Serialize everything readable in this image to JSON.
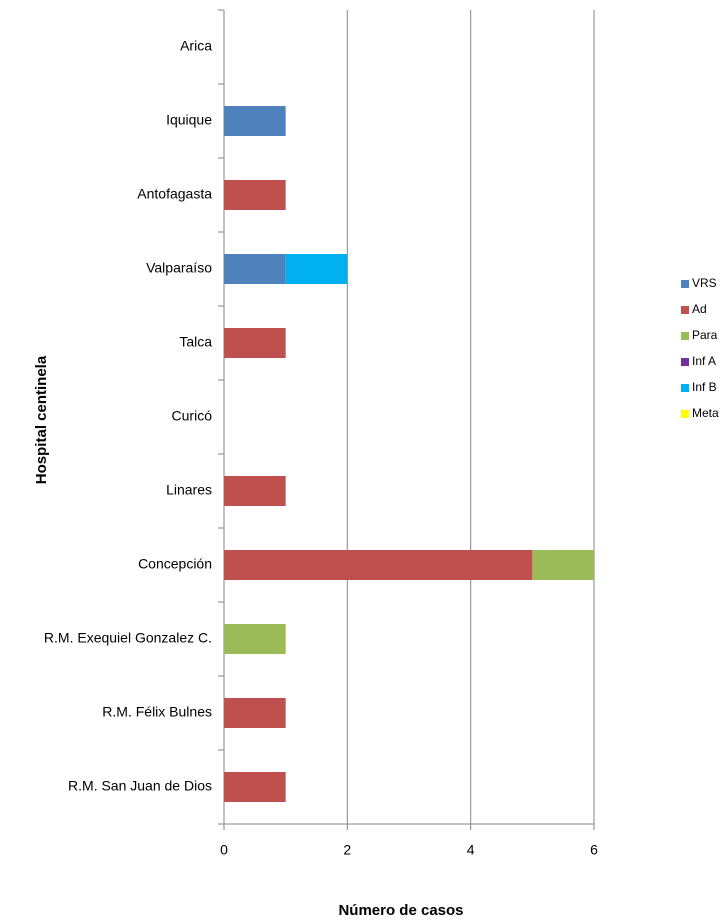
{
  "chart_data": {
    "type": "stacked-barh",
    "xlabel": "Número de casos",
    "ylabel": "Hospital  centinela",
    "categories": [
      "Arica",
      "Iquique",
      "Antofagasta",
      "Valparaíso",
      "Talca",
      "Curicó",
      "Linares",
      "Concepción",
      "R.M. Exequiel Gonzalez C.",
      "R.M. Félix Bulnes",
      "R.M. San Juan de Dios"
    ],
    "series": [
      {
        "name": "VRS",
        "color": "#4f81bd",
        "values": [
          0,
          1,
          0,
          1,
          0,
          0,
          0,
          0,
          0,
          0,
          0
        ]
      },
      {
        "name": "Ad",
        "color": "#c0504d",
        "values": [
          0,
          0,
          1,
          0,
          1,
          0,
          1,
          5,
          0,
          1,
          1
        ]
      },
      {
        "name": "Para",
        "color": "#9bbb59",
        "values": [
          0,
          0,
          0,
          0,
          0,
          0,
          0,
          1,
          1,
          0,
          0
        ]
      },
      {
        "name": "Inf A",
        "color": "#7030a0",
        "values": [
          0,
          0,
          0,
          0,
          0,
          0,
          0,
          0,
          0,
          0,
          0
        ]
      },
      {
        "name": "Inf B",
        "color": "#00b0f0",
        "values": [
          0,
          0,
          0,
          1,
          0,
          0,
          0,
          0,
          0,
          0,
          0
        ]
      },
      {
        "name": "Meta",
        "color": "#ffff00",
        "values": [
          0,
          0,
          0,
          0,
          0,
          0,
          0,
          0,
          0,
          0,
          0
        ]
      }
    ],
    "xlim": [
      0,
      6
    ],
    "xticks": [
      0,
      2,
      4,
      6
    ],
    "grid": true,
    "legend": "right"
  }
}
